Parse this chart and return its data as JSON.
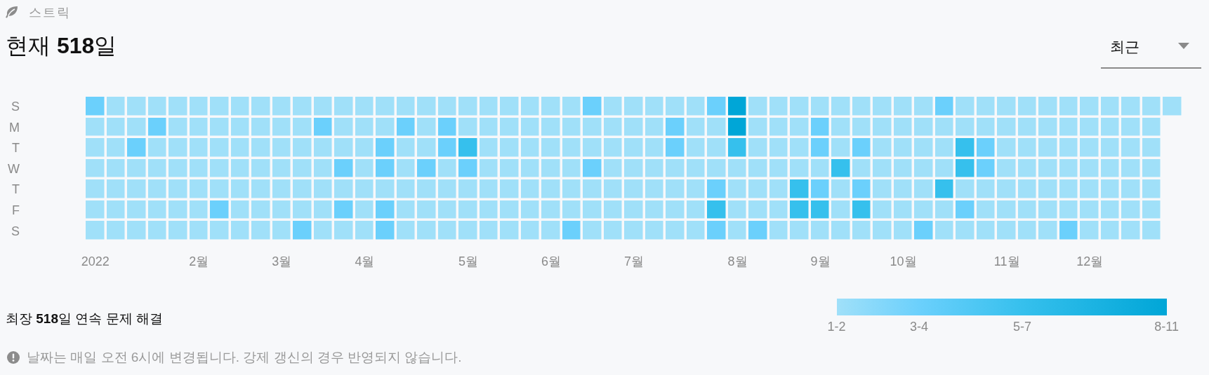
{
  "chart_data": {
    "type": "heatmap",
    "subtitle": "스트릭",
    "title": "현재 518일",
    "annotations": [
      "최근",
      "최장 518일 연속 문제 해결",
      "날짜는 매일 오전 6시에 변경됩니다. 강제 갱신의 경우 반영되지 않습니다."
    ],
    "categories": [
      "2022",
      null,
      null,
      null,
      null,
      "2월",
      null,
      null,
      null,
      "3월",
      null,
      null,
      null,
      "4월",
      null,
      null,
      null,
      null,
      "5월",
      null,
      null,
      null,
      "6월",
      null,
      null,
      null,
      "7월",
      null,
      null,
      null,
      null,
      "8월",
      null,
      null,
      null,
      "9월",
      null,
      null,
      null,
      "10월",
      null,
      null,
      null,
      null,
      "11월",
      null,
      null,
      null,
      "12월",
      null,
      null,
      null,
      null
    ],
    "y_categories": [
      "S",
      "M",
      "T",
      "W",
      "T",
      "F",
      "S"
    ],
    "cells": [
      [
        3.5,
        1.5,
        1.5,
        1.5,
        1.5,
        1.5,
        1.5,
        1.5,
        1.5,
        1.5,
        1.5,
        1.5,
        1.5,
        1.5,
        1.5,
        1.5,
        1.5,
        1.5,
        1.5,
        1.5,
        1.5,
        1.5,
        1.5,
        1.5,
        3.5,
        1.5,
        1.5,
        1.5,
        1.5,
        1.5,
        3.5,
        9.5,
        1.5,
        1.5,
        1.5,
        1.5,
        1.5,
        1.5,
        1.5,
        1.5,
        1.5,
        3.5,
        1.5,
        1.5,
        1.5,
        1.5,
        1.5,
        1.5,
        1.5,
        1.5,
        1.5,
        1.5,
        1.5
      ],
      [
        1.5,
        1.5,
        1.5,
        3.5,
        1.5,
        1.5,
        1.5,
        1.5,
        1.5,
        1.5,
        1.5,
        3.5,
        1.5,
        1.5,
        1.5,
        3.5,
        1.5,
        3.5,
        1.5,
        1.5,
        1.5,
        1.5,
        1.5,
        1.5,
        1.5,
        1.5,
        1.5,
        1.5,
        3.5,
        1.5,
        1.5,
        9.5,
        1.5,
        1.5,
        1.5,
        3.5,
        1.5,
        1.5,
        1.5,
        1.5,
        1.5,
        1.5,
        1.5,
        1.5,
        1.5,
        1.5,
        1.5,
        1.5,
        1.5,
        1.5,
        1.5,
        1.5,
        null
      ],
      [
        1.5,
        1.5,
        3.5,
        1.5,
        1.5,
        1.5,
        1.5,
        1.5,
        1.5,
        1.5,
        1.5,
        1.5,
        1.5,
        1.5,
        3.5,
        1.5,
        1.5,
        3.5,
        6,
        1.5,
        1.5,
        1.5,
        1.5,
        1.5,
        1.5,
        1.5,
        1.5,
        1.5,
        3.5,
        1.5,
        1.5,
        6,
        1.5,
        1.5,
        1.5,
        3.5,
        1.5,
        3.5,
        1.5,
        1.5,
        1.5,
        1.5,
        6,
        3.5,
        1.5,
        1.5,
        1.5,
        1.5,
        1.5,
        1.5,
        1.5,
        1.5,
        null
      ],
      [
        1.5,
        1.5,
        1.5,
        1.5,
        1.5,
        1.5,
        1.5,
        1.5,
        1.5,
        1.5,
        1.5,
        1.5,
        3.5,
        1.5,
        3.5,
        1.5,
        3.5,
        1.5,
        3.5,
        1.5,
        1.5,
        1.5,
        1.5,
        1.5,
        3.5,
        1.5,
        1.5,
        1.5,
        1.5,
        1.5,
        1.5,
        1.5,
        1.5,
        1.5,
        1.5,
        1.5,
        6,
        1.5,
        1.5,
        1.5,
        1.5,
        1.5,
        6,
        3.5,
        1.5,
        1.5,
        1.5,
        1.5,
        1.5,
        1.5,
        1.5,
        1.5,
        null
      ],
      [
        1.5,
        1.5,
        1.5,
        1.5,
        1.5,
        1.5,
        1.5,
        1.5,
        1.5,
        1.5,
        1.5,
        1.5,
        1.5,
        1.5,
        1.5,
        1.5,
        1.5,
        1.5,
        1.5,
        1.5,
        1.5,
        1.5,
        1.5,
        1.5,
        1.5,
        1.5,
        1.5,
        1.5,
        1.5,
        1.5,
        3.5,
        1.5,
        1.5,
        1.5,
        6,
        3.5,
        1.5,
        3.5,
        1.5,
        1.5,
        1.5,
        6,
        1.5,
        1.5,
        1.5,
        1.5,
        1.5,
        1.5,
        1.5,
        1.5,
        1.5,
        1.5,
        null
      ],
      [
        1.5,
        1.5,
        1.5,
        1.5,
        1.5,
        1.5,
        3.5,
        1.5,
        1.5,
        1.5,
        1.5,
        1.5,
        3.5,
        1.5,
        3.5,
        1.5,
        1.5,
        1.5,
        1.5,
        1.5,
        1.5,
        1.5,
        1.5,
        1.5,
        1.5,
        1.5,
        1.5,
        1.5,
        1.5,
        1.5,
        6,
        1.5,
        1.5,
        1.5,
        6,
        6,
        1.5,
        6,
        1.5,
        1.5,
        1.5,
        1.5,
        3.5,
        1.5,
        1.5,
        1.5,
        1.5,
        1.5,
        1.5,
        1.5,
        1.5,
        1.5,
        null
      ],
      [
        1.5,
        1.5,
        1.5,
        1.5,
        1.5,
        1.5,
        1.5,
        1.5,
        1.5,
        1.5,
        3.5,
        1.5,
        1.5,
        1.5,
        3.5,
        1.5,
        1.5,
        1.5,
        1.5,
        1.5,
        1.5,
        1.5,
        1.5,
        3.5,
        1.5,
        1.5,
        1.5,
        1.5,
        1.5,
        1.5,
        3.5,
        1.5,
        3.5,
        1.5,
        1.5,
        1.5,
        1.5,
        1.5,
        1.5,
        1.5,
        3.5,
        1.5,
        1.5,
        1.5,
        1.5,
        1.5,
        1.5,
        3.5,
        1.5,
        1.5,
        1.5,
        1.5,
        null
      ]
    ],
    "cticks": [
      {
        "value": 1.5,
        "label": "1-2"
      },
      {
        "value": 3.5,
        "label": "3-4"
      },
      {
        "value": 6,
        "label": "5-7"
      },
      {
        "value": 9.5,
        "label": "8-11"
      }
    ],
    "colors": [
      "#a0e0f9",
      "#6bd0fc",
      "#36c0ed",
      "#00a6d7"
    ]
  }
}
